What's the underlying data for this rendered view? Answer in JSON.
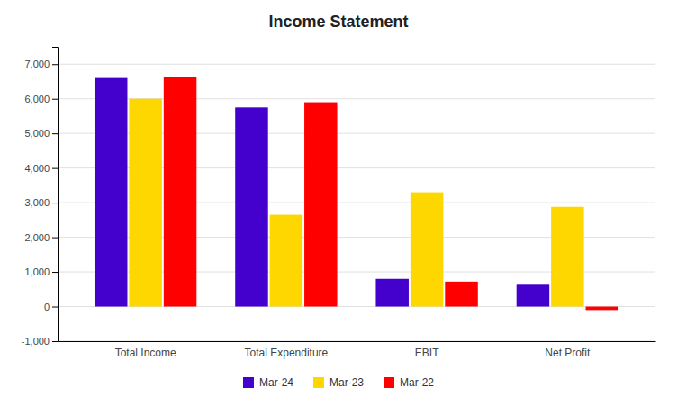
{
  "chart_data": {
    "type": "bar",
    "title": "Income Statement",
    "categories": [
      "Total Income",
      "Total Expenditure",
      "EBIT",
      "Net Profit"
    ],
    "series": [
      {
        "name": "Mar-24",
        "color": "#4400CC",
        "values": [
          6600,
          5750,
          800,
          630
        ]
      },
      {
        "name": "Mar-23",
        "color": "#FFD700",
        "values": [
          6000,
          2650,
          3300,
          2880
        ]
      },
      {
        "name": "Mar-22",
        "color": "#FF0000",
        "values": [
          6630,
          5900,
          720,
          -100
        ]
      }
    ],
    "ylim": [
      -1000,
      7500
    ],
    "yticks": [
      {
        "value": -1000,
        "label": "-1,000"
      },
      0,
      {
        "value": 1000,
        "label": "1,000"
      },
      {
        "value": 2000,
        "label": "2,000"
      },
      {
        "value": 3000,
        "label": "3,000"
      },
      {
        "value": 4000,
        "label": "4,000"
      },
      {
        "value": 5000,
        "label": "5,000"
      },
      {
        "value": 6000,
        "label": "6,000"
      },
      {
        "value": 7000,
        "label": "7,000"
      }
    ],
    "grid": true,
    "legend": "bottom"
  }
}
